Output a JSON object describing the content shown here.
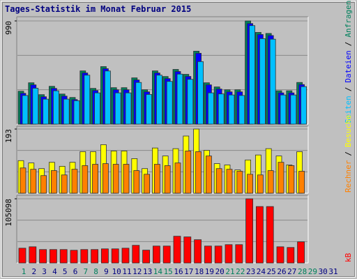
{
  "chart_data": {
    "type": "bar",
    "title": "Tages-Statistik im Monat Februar 2015",
    "legend_separator": "/",
    "categories": [
      "1",
      "2",
      "3",
      "4",
      "5",
      "6",
      "7",
      "8",
      "9",
      "10",
      "11",
      "12",
      "13",
      "14",
      "15",
      "16",
      "17",
      "18",
      "19",
      "20",
      "21",
      "22",
      "23",
      "24",
      "25",
      "26",
      "27",
      "28",
      "29",
      "30",
      "31"
    ],
    "category_colors": [
      "#00805c",
      "#000080",
      "#000080",
      "#000080",
      "#000080",
      "#000080",
      "#00805c",
      "#00805c",
      "#000080",
      "#000080",
      "#000080",
      "#000080",
      "#000080",
      "#00805c",
      "#00805c",
      "#000080",
      "#000080",
      "#000080",
      "#000080",
      "#000080",
      "#00805c",
      "#00805c",
      "#000080",
      "#000080",
      "#000080",
      "#000080",
      "#000080",
      "#00805c",
      "#00805c",
      "#000080",
      "#000080"
    ],
    "panels": [
      {
        "ylim": [
          0,
          990
        ],
        "yticks": [
          990
        ],
        "series": [
          {
            "name": "Anfragen",
            "color": "#00805c",
            "values": [
              316,
              397,
              283,
              363,
              289,
              256,
              511,
              343,
              552,
              350,
              350,
              444,
              330,
              511,
              457,
              525,
              478,
              700,
              397,
              357,
              330,
              330,
              990,
              880,
              870,
              320,
              320,
              400,
              null,
              null,
              null
            ]
          },
          {
            "name": "Dateien",
            "color": "#0000ff",
            "values": [
              296,
              377,
              263,
              343,
              269,
              236,
              491,
              323,
              532,
              330,
              330,
              424,
              310,
              491,
              437,
              505,
              458,
              680,
              377,
              337,
              310,
              310,
              965,
              860,
              850,
              300,
              300,
              380,
              null,
              null,
              null
            ]
          },
          {
            "name": "Seiten",
            "color": "#00c0ff",
            "values": [
              275,
              345,
              240,
              320,
              240,
              225,
              470,
              300,
              510,
              300,
              300,
              400,
              285,
              470,
              410,
              480,
              430,
              600,
              300,
              290,
              280,
              275,
              945,
              820,
              815,
              280,
              280,
              360,
              null,
              null,
              null
            ]
          }
        ]
      },
      {
        "ylim": [
          0,
          193
        ],
        "yticks": [
          193
        ],
        "series": [
          {
            "name": "Besuche",
            "color": "#ffff00",
            "values": [
              98,
              91,
              74,
              93,
              81,
              93,
              125,
              125,
              146,
              127,
              127,
              104,
              74,
              136,
              112,
              134,
              172,
              193,
              129,
              89,
              85,
              70,
              100,
              115,
              134,
              112,
              85,
              125,
              null,
              null,
              null
            ]
          },
          {
            "name": "Rechner",
            "color": "#ff8000",
            "values": [
              76,
              72,
              53,
              68,
              55,
              72,
              83,
              87,
              89,
              87,
              87,
              68,
              57,
              87,
              83,
              91,
              127,
              125,
              112,
              74,
              72,
              66,
              57,
              55,
              68,
              93,
              83,
              66,
              null,
              null,
              null
            ]
          }
        ]
      },
      {
        "ylim": [
          0,
          105098
        ],
        "yticks": [
          105098
        ],
        "series": [
          {
            "name": "kB",
            "color": "#ff0000",
            "values": [
              24200,
              26500,
              22000,
              22000,
              22000,
              20800,
              22000,
              22000,
              23100,
              23100,
              24200,
              28900,
              21000,
              27700,
              27700,
              43800,
              42700,
              38100,
              27700,
              27700,
              30000,
              30000,
              105098,
              92400,
              92400,
              26500,
              25400,
              34600,
              null,
              null,
              null
            ]
          }
        ]
      }
    ]
  }
}
